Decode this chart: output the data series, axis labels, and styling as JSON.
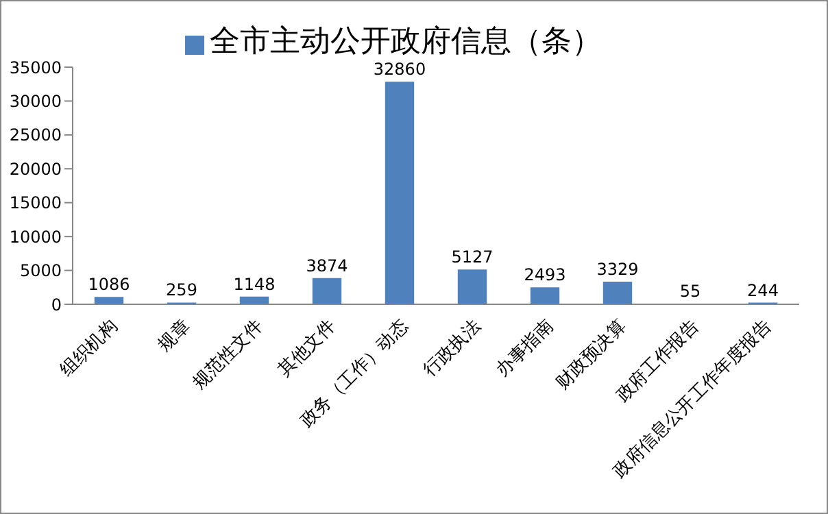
{
  "chart_data": {
    "type": "bar",
    "categories": [
      "组织机构",
      "规章",
      "规范性文件",
      "其他文件",
      "政务（工作）动态",
      "行政执法",
      "办事指南",
      "财政预决算",
      "政府工作报告",
      "政府信息公开工作年度报告"
    ],
    "series": [
      {
        "name": "全市主动公开政府信息（条）",
        "color": "#4f81bd",
        "values": [
          1086,
          259,
          1148,
          3874,
          32860,
          5127,
          2493,
          3329,
          55,
          244
        ]
      }
    ],
    "ylim": [
      0,
      35000
    ],
    "yticks": [
      0,
      5000,
      10000,
      15000,
      20000,
      25000,
      30000,
      35000
    ],
    "grid": false,
    "legend": "top",
    "data_labels": true
  }
}
